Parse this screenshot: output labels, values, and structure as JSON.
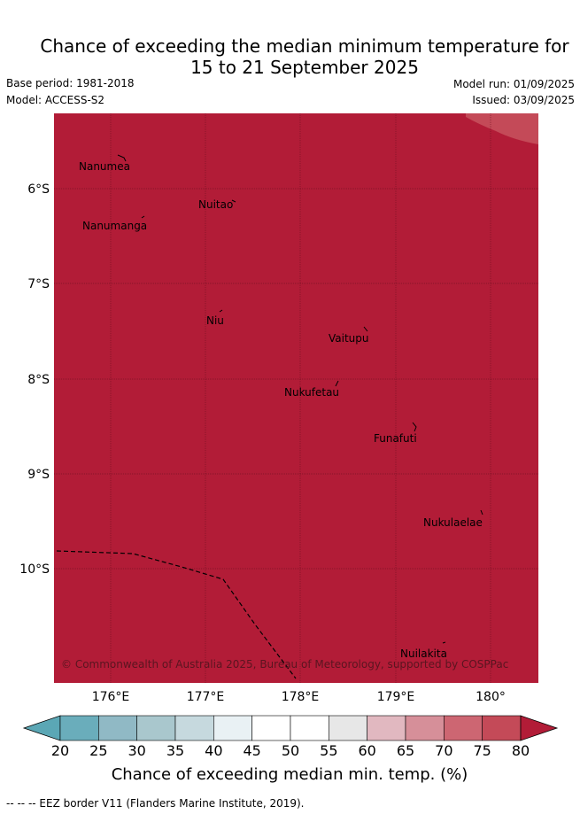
{
  "title_line1": "Chance of exceeding the median minimum temperature for",
  "title_line2": "15 to 21 September 2025",
  "base_period": "Base period: 1981-2018",
  "model": "Model: ACCESS-S2",
  "model_run": "Model run: 01/09/2025",
  "issued": "Issued: 03/09/2025",
  "colors": {
    "map_fill": "#b21c37",
    "corner_fill": "#c44a58"
  },
  "map": {
    "lon_ticks": [
      "176°E",
      "177°E",
      "178°E",
      "179°E",
      "180°"
    ],
    "lat_ticks": [
      "6°S",
      "7°S",
      "8°S",
      "9°S",
      "10°S"
    ],
    "places": [
      {
        "name": "Nanumea"
      },
      {
        "name": "Nuitao"
      },
      {
        "name": "Nanumanga"
      },
      {
        "name": "Niu"
      },
      {
        "name": "Vaitupu"
      },
      {
        "name": "Nukufetau"
      },
      {
        "name": "Funafuti"
      },
      {
        "name": "Nukulaelae"
      },
      {
        "name": "Nuilakita"
      }
    ],
    "copyright": "© Commonwealth of Australia 2025, Bureau of Meteorology, supported by COSPPac"
  },
  "colorbar": {
    "ticks": [
      "20",
      "25",
      "30",
      "35",
      "40",
      "45",
      "50",
      "55",
      "60",
      "65",
      "70",
      "75",
      "80"
    ],
    "colors": [
      "#6aadbb",
      "#90b9c5",
      "#a9c7cd",
      "#c6d9de",
      "#e9f1f4",
      "#ffffff",
      "#ffffff",
      "#e7e7e7",
      "#e1b8c0",
      "#d68f99",
      "#cd6672",
      "#c44a58"
    ],
    "under_color": "#5ba7b5",
    "over_color": "#b21c37",
    "title": "Chance of exceeding median min. temp. (%)"
  },
  "eez_note": "-- -- -- EEZ border V11 (Flanders Marine Institute, 2019)."
}
